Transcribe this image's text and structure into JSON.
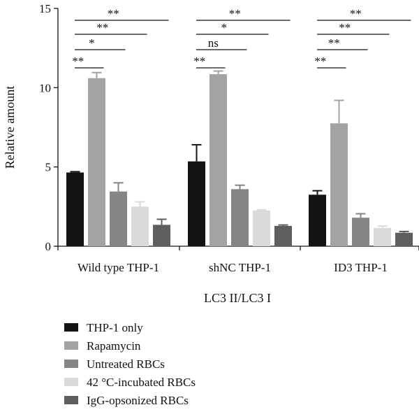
{
  "chart_data": {
    "type": "bar",
    "title": "",
    "ylabel": "Relative amount",
    "xlabel": "LC3 II/LC3 I",
    "ylim": [
      0,
      15
    ],
    "yticks": [
      0,
      5,
      10,
      15
    ],
    "categories": [
      "Wild type THP-1",
      "shNC THP-1",
      "ID3 THP-1"
    ],
    "series": [
      {
        "name": "THP-1 only",
        "color": "#141414",
        "values": [
          4.65,
          5.35,
          3.25
        ],
        "errors": [
          0.05,
          1.05,
          0.25
        ]
      },
      {
        "name": "Rapamycin",
        "color": "#a3a3a3",
        "values": [
          10.6,
          10.85,
          7.75
        ],
        "errors": [
          0.35,
          0.2,
          1.45
        ]
      },
      {
        "name": "Untreated RBCs",
        "color": "#858585",
        "values": [
          3.45,
          3.6,
          1.8
        ],
        "errors": [
          0.55,
          0.25,
          0.25
        ]
      },
      {
        "name": "42 °C-incubated RBCs",
        "color": "#d9d9d9",
        "values": [
          2.5,
          2.25,
          1.15
        ],
        "errors": [
          0.3,
          0.05,
          0.12
        ]
      },
      {
        "name": "IgG-opsonized RBCs",
        "color": "#5e5e5e",
        "values": [
          1.35,
          1.28,
          0.85
        ],
        "errors": [
          0.35,
          0.06,
          0.08
        ]
      }
    ],
    "significance": [
      {
        "group": 0,
        "from": 0,
        "to": 1,
        "label": "**"
      },
      {
        "group": 0,
        "from": 0,
        "to": 2,
        "label": "*"
      },
      {
        "group": 0,
        "from": 0,
        "to": 3,
        "label": "**"
      },
      {
        "group": 0,
        "from": 0,
        "to": 4,
        "label": "**"
      },
      {
        "group": 1,
        "from": 0,
        "to": 1,
        "label": "**"
      },
      {
        "group": 1,
        "from": 0,
        "to": 2,
        "label": "ns"
      },
      {
        "group": 1,
        "from": 0,
        "to": 3,
        "label": "*"
      },
      {
        "group": 1,
        "from": 0,
        "to": 4,
        "label": "**"
      },
      {
        "group": 2,
        "from": 0,
        "to": 1,
        "label": "**"
      },
      {
        "group": 2,
        "from": 0,
        "to": 2,
        "label": "**"
      },
      {
        "group": 2,
        "from": 0,
        "to": 3,
        "label": "**"
      },
      {
        "group": 2,
        "from": 0,
        "to": 4,
        "label": "**"
      }
    ],
    "legend_position": "bottom-left",
    "grid": false
  }
}
